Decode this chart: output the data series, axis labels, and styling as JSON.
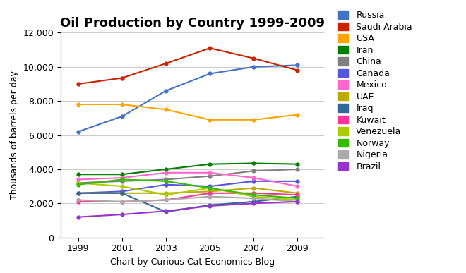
{
  "title": "Oil Production by Country 1999-2009",
  "xlabel": "Chart by Curious Cat Economics Blog",
  "ylabel": "Thousands of barrels per day",
  "years": [
    1999,
    2001,
    2003,
    2005,
    2007,
    2009
  ],
  "series": {
    "Russia": [
      6200,
      7100,
      8600,
      9600,
      10000,
      10100
    ],
    "Saudi Arabia": [
      9000,
      9350,
      10200,
      11100,
      10500,
      9800
    ],
    "USA": [
      7800,
      7800,
      7500,
      6900,
      6900,
      7200
    ],
    "Iran": [
      3700,
      3700,
      4000,
      4300,
      4350,
      4300
    ],
    "China": [
      3200,
      3300,
      3400,
      3600,
      3900,
      4000
    ],
    "Canada": [
      2600,
      2700,
      3100,
      3000,
      3300,
      3300
    ],
    "Mexico": [
      3400,
      3500,
      3800,
      3800,
      3500,
      3000
    ],
    "UAE": [
      2600,
      2600,
      2600,
      2700,
      2900,
      2600
    ],
    "Iraq": [
      2600,
      2600,
      1500,
      1900,
      2100,
      2400
    ],
    "Kuwait": [
      2100,
      2100,
      2200,
      2600,
      2600,
      2500
    ],
    "Venezuela": [
      3200,
      3000,
      2500,
      2900,
      2400,
      2200
    ],
    "Norway": [
      3100,
      3400,
      3300,
      2900,
      2500,
      2300
    ],
    "Nigeria": [
      2200,
      2100,
      2200,
      2400,
      2300,
      2100
    ],
    "Brazil": [
      1200,
      1350,
      1550,
      1850,
      2000,
      2100
    ]
  },
  "colors": {
    "Russia": "#4472C4",
    "Saudi Arabia": "#CC2200",
    "USA": "#FFA500",
    "Iran": "#008000",
    "China": "#808080",
    "Canada": "#5555DD",
    "Mexico": "#FF66CC",
    "UAE": "#BBAA00",
    "Iraq": "#336699",
    "Kuwait": "#FF3399",
    "Venezuela": "#AACC00",
    "Norway": "#33BB00",
    "Nigeria": "#AAAAAA",
    "Brazil": "#9933CC"
  },
  "ylim": [
    0,
    12000
  ],
  "yticks": [
    0,
    2000,
    4000,
    6000,
    8000,
    10000,
    12000
  ],
  "background_color": "#FFFFFF",
  "title_fontsize": 13,
  "label_fontsize": 9,
  "tick_fontsize": 9,
  "legend_fontsize": 9
}
